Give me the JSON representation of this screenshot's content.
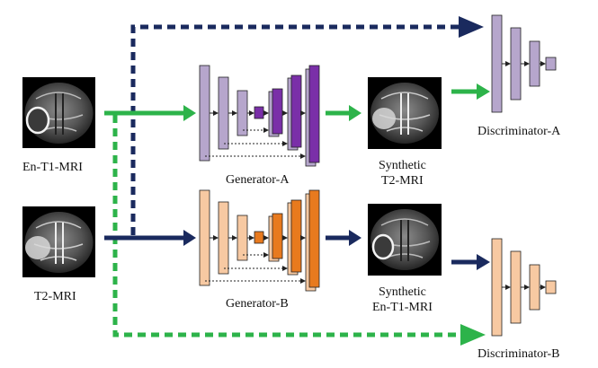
{
  "labels": {
    "input_t1": "En-T1-MRI",
    "input_t2": "T2-MRI",
    "generator_a": "Generator-A",
    "generator_b": "Generator-B",
    "synthetic_t2_line1": "Synthetic",
    "synthetic_t2_line2": "T2-MRI",
    "synthetic_t1_line1": "Synthetic",
    "synthetic_t1_line2": "En-T1-MRI",
    "discriminator_a": "Discriminator-A",
    "discriminator_b": "Discriminator-B"
  },
  "colors": {
    "generator_a_light": "#b6a6cc",
    "generator_a_dark": "#7a2fa8",
    "generator_b_light": "#f7c9a2",
    "generator_b_dark": "#e87a1e",
    "green_arrow": "#2db34a",
    "navy_arrow": "#1a2a5e"
  }
}
